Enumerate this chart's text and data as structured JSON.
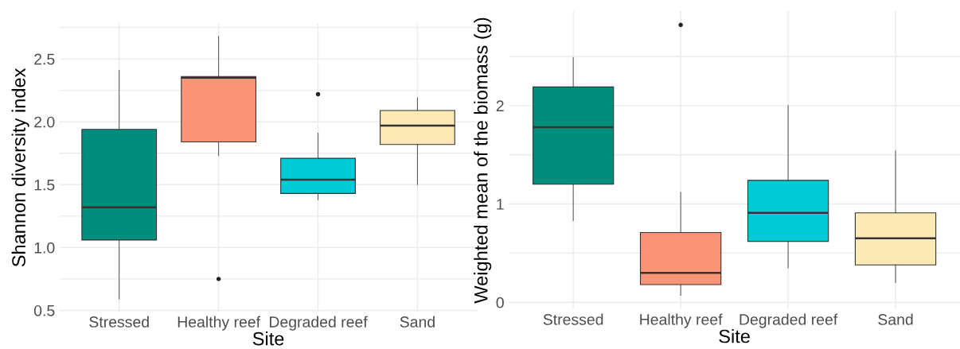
{
  "chart_data": [
    {
      "type": "box",
      "xlabel": "Site",
      "ylabel": "Shannon diversity index",
      "categories": [
        "Stressed",
        "Healthy reef",
        "Degraded reef",
        "Sand"
      ],
      "colors": [
        "#008e7c",
        "#fa9479",
        "#00cad6",
        "#fde9b6"
      ],
      "boxes": [
        {
          "low": 0.59,
          "q1": 1.06,
          "median": 1.32,
          "q3": 1.94,
          "high": 2.41
        },
        {
          "low": 1.73,
          "q1": 1.84,
          "median": 2.35,
          "q3": 2.36,
          "high": 2.68,
          "outliers": [
            0.75
          ]
        },
        {
          "low": 1.38,
          "q1": 1.43,
          "median": 1.54,
          "q3": 1.71,
          "high": 1.91,
          "outliers": [
            2.22
          ]
        },
        {
          "low": 1.5,
          "q1": 1.82,
          "median": 1.97,
          "q3": 2.09,
          "high": 2.19
        }
      ],
      "ylim": [
        0.49,
        2.78
      ],
      "yticks": [
        {
          "value": 0.5,
          "label": "0.5"
        },
        {
          "value": 0.75,
          "label": null
        },
        {
          "value": 1.0,
          "label": "1.0"
        },
        {
          "value": 1.25,
          "label": null
        },
        {
          "value": 1.5,
          "label": "1.5"
        },
        {
          "value": 1.75,
          "label": null
        },
        {
          "value": 2.0,
          "label": "2.0"
        },
        {
          "value": 2.25,
          "label": null
        },
        {
          "value": 2.5,
          "label": "2.5"
        },
        {
          "value": 2.75,
          "label": null
        }
      ],
      "grid": true
    },
    {
      "type": "box",
      "xlabel": "Site",
      "ylabel": "Weighted mean of the biomass (g)",
      "categories": [
        "Stressed",
        "Healthy reef",
        "Degraded reef",
        "Sand"
      ],
      "colors": [
        "#008e7c",
        "#fa9479",
        "#00cad6",
        "#fde9b6"
      ],
      "boxes": [
        {
          "low": 0.83,
          "q1": 1.2,
          "median": 1.78,
          "q3": 2.19,
          "high": 2.49
        },
        {
          "low": 0.07,
          "q1": 0.18,
          "median": 0.3,
          "q3": 0.71,
          "high": 1.12,
          "outliers": [
            2.82
          ]
        },
        {
          "low": 0.35,
          "q1": 0.62,
          "median": 0.91,
          "q3": 1.24,
          "high": 2.0
        },
        {
          "low": 0.2,
          "q1": 0.38,
          "median": 0.65,
          "q3": 0.91,
          "high": 1.54
        }
      ],
      "ylim": [
        -0.07,
        2.96
      ],
      "yticks": [
        0,
        {
          "value": 0.5,
          "label": null
        },
        1,
        {
          "value": 1.5,
          "label": null
        },
        2,
        {
          "value": 2.5,
          "label": null
        }
      ],
      "grid": true
    }
  ]
}
